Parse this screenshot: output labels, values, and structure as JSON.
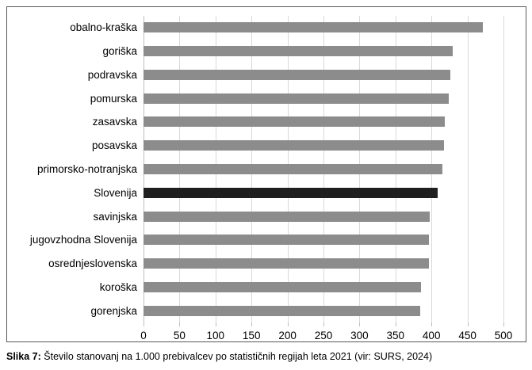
{
  "colors": {
    "bar": "#8c8c8c",
    "highlight_bar": "#1f1f1f",
    "gridline": "#d9d9d9",
    "axis_line": "#bfbfbf",
    "border": "#595959",
    "text": "#000000"
  },
  "caption": {
    "label": "Slika 7:",
    "text": " Število stanovanj na 1.000 prebivalcev po statističnih regijah leta 2021 (vir: SURS, 2024)"
  },
  "chart_data": {
    "type": "bar",
    "orientation": "horizontal",
    "title": "",
    "xlabel": "",
    "ylabel": "",
    "categories": [
      "obalno-kraška",
      "goriška",
      "podravska",
      "pomurska",
      "zasavska",
      "posavska",
      "primorsko-notranjska",
      "Slovenija",
      "savinjska",
      "jugovzhodna Slovenija",
      "osrednjeslovenska",
      "koroška",
      "gorenjska"
    ],
    "values": [
      471,
      430,
      426,
      424,
      418,
      417,
      415,
      409,
      398,
      397,
      396,
      386,
      384
    ],
    "highlighted_category": "Slovenija",
    "xlim": [
      0,
      500
    ],
    "xticks": [
      0,
      50,
      100,
      150,
      200,
      250,
      300,
      350,
      400,
      450,
      500
    ],
    "grid": true,
    "legend": "none"
  }
}
